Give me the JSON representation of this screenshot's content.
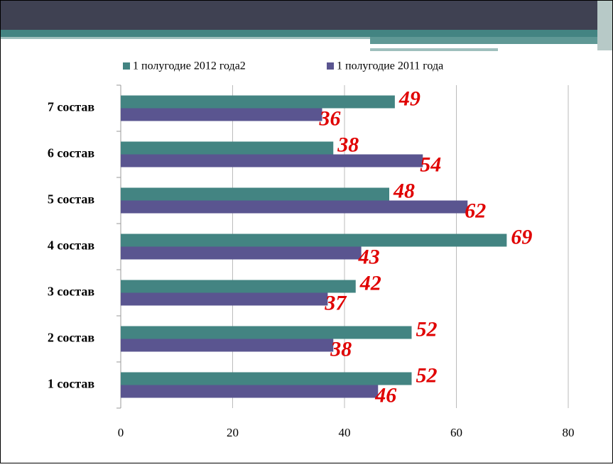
{
  "chart_data": {
    "type": "bar",
    "orientation": "horizontal",
    "categories": [
      "1 состав",
      "2 состав",
      "3 состав",
      "4 состав",
      "5 состав",
      "6 состав",
      "7 состав"
    ],
    "series": [
      {
        "name": "1 полугодие 2012 года2",
        "color": "#438482",
        "values": [
          52,
          52,
          42,
          69,
          48,
          38,
          49
        ]
      },
      {
        "name": "1 полугодие 2011 года",
        "color": "#5a5590",
        "values": [
          46,
          38,
          37,
          43,
          62,
          54,
          36
        ]
      }
    ],
    "xlim": [
      0,
      80
    ],
    "xticks": [
      0,
      20,
      40,
      60,
      80
    ],
    "grid": true,
    "legend": "top",
    "value_label_color": "#e00000"
  }
}
